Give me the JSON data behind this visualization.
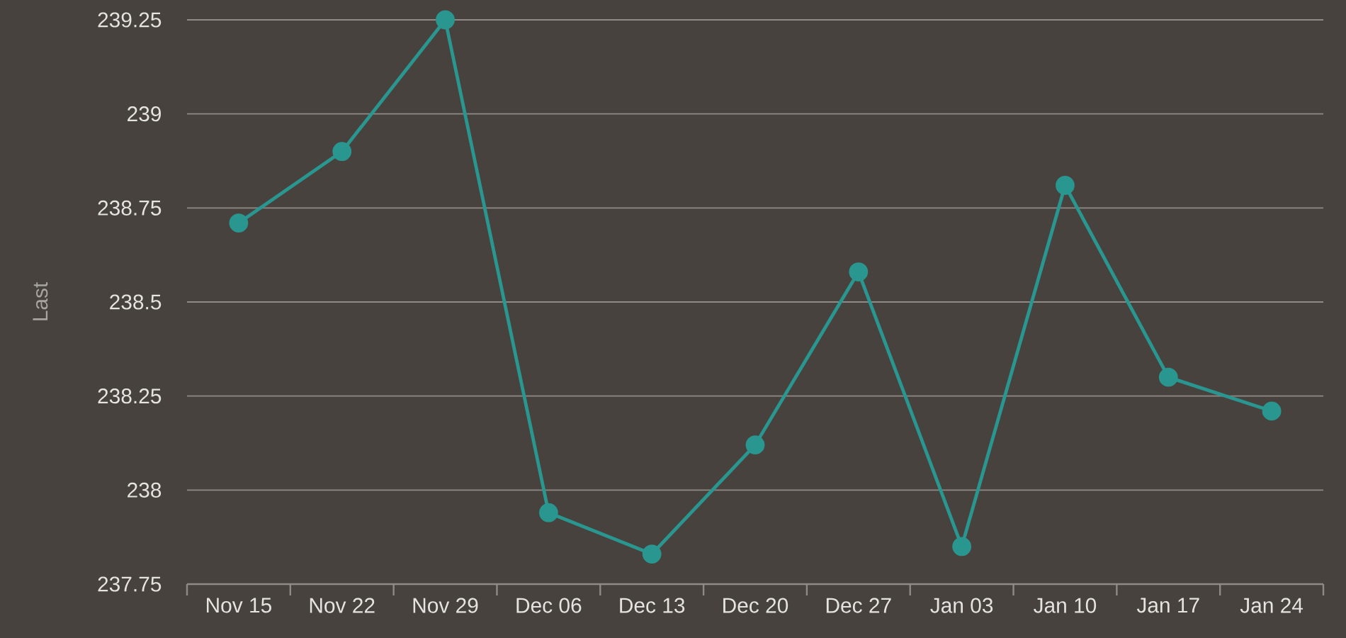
{
  "chart_data": {
    "type": "line",
    "ylabel": "Last",
    "categories": [
      "Nov 15",
      "Nov 22",
      "Nov 29",
      "Dec 06",
      "Dec 13",
      "Dec 20",
      "Dec 27",
      "Jan 03",
      "Jan 10",
      "Jan 17",
      "Jan 24"
    ],
    "values": [
      238.71,
      238.9,
      239.25,
      237.94,
      237.83,
      238.12,
      238.58,
      237.85,
      238.81,
      238.3,
      238.21
    ],
    "color": "#2a9690",
    "ylim": [
      237.75,
      239.25
    ],
    "yticks": [
      237.75,
      238,
      238.25,
      238.5,
      238.75,
      239,
      239.25
    ],
    "grid": "y",
    "marker": "circle",
    "line_style": "solid"
  }
}
